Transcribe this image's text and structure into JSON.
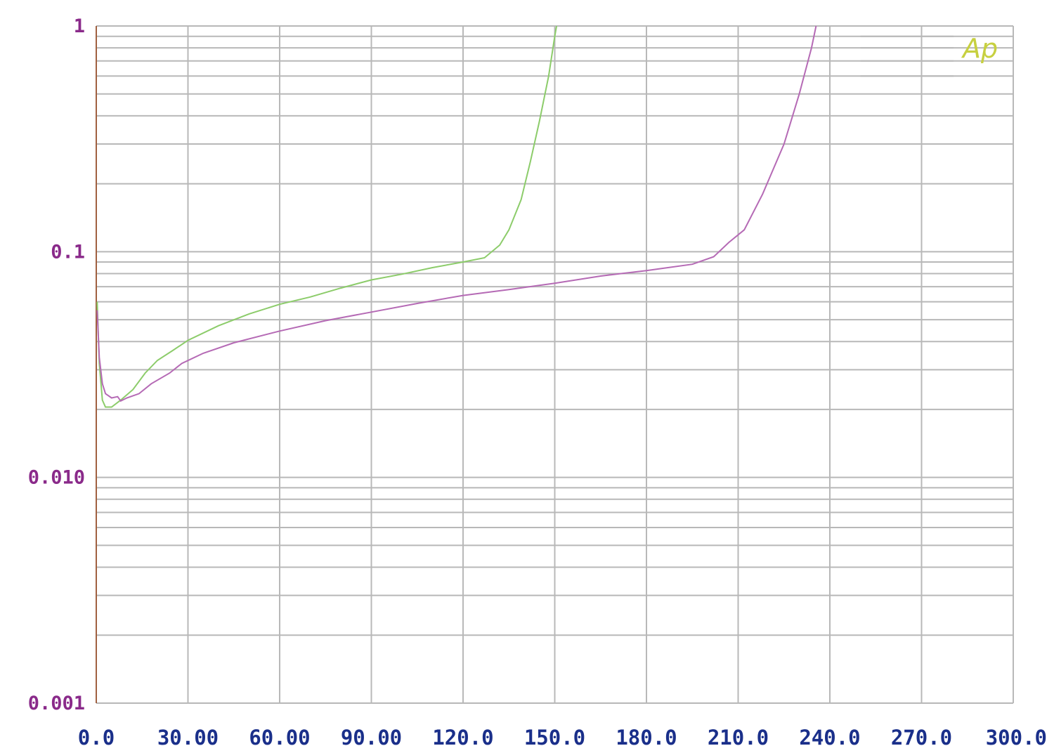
{
  "chart_data": {
    "type": "line",
    "title": "",
    "xlabel": "",
    "ylabel": "",
    "x_scale": "linear",
    "y_scale": "log",
    "xlim": [
      0,
      300
    ],
    "ylim": [
      0.001,
      1
    ],
    "grid": true,
    "x_ticks": [
      0,
      30,
      60,
      90,
      120,
      150,
      180,
      210,
      240,
      270,
      300
    ],
    "x_tick_labels": [
      "0.0",
      "30.00",
      "60.00",
      "90.00",
      "120.0",
      "150.0",
      "180.0",
      "210.0",
      "240.0",
      "270.0",
      "300.0"
    ],
    "y_ticks": [
      1,
      0.1,
      0.01,
      0.001
    ],
    "y_tick_labels": [
      "1",
      "0.1",
      "0.010",
      "0.001"
    ],
    "series": [
      {
        "color": "#8ccc6a",
        "points": [
          [
            0.3,
            0.06
          ],
          [
            1,
            0.032
          ],
          [
            2,
            0.022
          ],
          [
            3,
            0.0205
          ],
          [
            5,
            0.0205
          ],
          [
            8,
            0.022
          ],
          [
            12,
            0.0245
          ],
          [
            16,
            0.029
          ],
          [
            20,
            0.033
          ],
          [
            25,
            0.0365
          ],
          [
            30,
            0.0405
          ],
          [
            40,
            0.047
          ],
          [
            50,
            0.053
          ],
          [
            60,
            0.0585
          ],
          [
            70,
            0.063
          ],
          [
            80,
            0.069
          ],
          [
            90,
            0.075
          ],
          [
            100,
            0.0795
          ],
          [
            110,
            0.085
          ],
          [
            120,
            0.09
          ],
          [
            127,
            0.094
          ],
          [
            132,
            0.107
          ],
          [
            135,
            0.125
          ],
          [
            139,
            0.17
          ],
          [
            142,
            0.25
          ],
          [
            145,
            0.38
          ],
          [
            148,
            0.6
          ],
          [
            150,
            0.9
          ],
          [
            150.6,
            1.0
          ]
        ]
      },
      {
        "color": "#b56ab5",
        "points": [
          [
            0.3,
            0.055
          ],
          [
            1,
            0.034
          ],
          [
            2,
            0.026
          ],
          [
            3,
            0.0235
          ],
          [
            5,
            0.0225
          ],
          [
            7,
            0.0228
          ],
          [
            8,
            0.0218
          ],
          [
            10,
            0.0225
          ],
          [
            14,
            0.0235
          ],
          [
            18,
            0.026
          ],
          [
            24,
            0.029
          ],
          [
            28,
            0.032
          ],
          [
            35,
            0.0355
          ],
          [
            45,
            0.0395
          ],
          [
            60,
            0.0445
          ],
          [
            75,
            0.0495
          ],
          [
            90,
            0.054
          ],
          [
            105,
            0.059
          ],
          [
            120,
            0.064
          ],
          [
            135,
            0.068
          ],
          [
            150,
            0.0725
          ],
          [
            165,
            0.078
          ],
          [
            180,
            0.0825
          ],
          [
            195,
            0.088
          ],
          [
            202,
            0.095
          ],
          [
            207,
            0.11
          ],
          [
            212,
            0.125
          ],
          [
            218,
            0.18
          ],
          [
            225,
            0.3
          ],
          [
            230,
            0.5
          ],
          [
            234,
            0.8
          ],
          [
            235.5,
            1.0
          ]
        ]
      }
    ],
    "annotations": [
      "Ap"
    ]
  },
  "colors": {
    "grid": "#b8b8b8",
    "y_axis_line": "#a06040",
    "y_tick_text": "#8a2a8a",
    "x_tick_text": "#1a2f8a",
    "logo": "#c7d040"
  }
}
